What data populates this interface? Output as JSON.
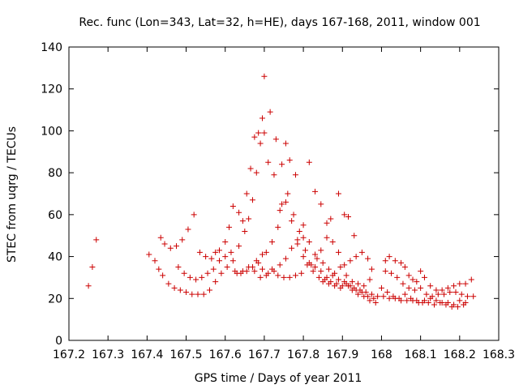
{
  "chart_data": {
    "type": "scatter",
    "title": "Rec. func (Lon=343, Lat=32, h=HE), days 167-168, 2011, window 001",
    "xlabel": "GPS time / Days of year 2011",
    "ylabel": "STEC from uqrg / TECUs",
    "xlim": [
      167.2,
      168.3
    ],
    "ylim": [
      0,
      140
    ],
    "xticks": [
      "167.2",
      "167.3",
      "167.4",
      "167.5",
      "167.6",
      "167.7",
      "167.8",
      "167.9",
      "168",
      "168.1",
      "168.2",
      "168.3"
    ],
    "yticks": [
      "0",
      "20",
      "40",
      "60",
      "80",
      "100",
      "120",
      "140"
    ],
    "grid": false,
    "marker": "plus",
    "color": "#cc0000",
    "points": [
      [
        167.25,
        26
      ],
      [
        167.26,
        35
      ],
      [
        167.27,
        48
      ],
      [
        167.405,
        41
      ],
      [
        167.42,
        38
      ],
      [
        167.435,
        49
      ],
      [
        167.445,
        46
      ],
      [
        167.46,
        44
      ],
      [
        167.475,
        45
      ],
      [
        167.49,
        48
      ],
      [
        167.505,
        53
      ],
      [
        167.52,
        60
      ],
      [
        167.535,
        42
      ],
      [
        167.55,
        40
      ],
      [
        167.565,
        39
      ],
      [
        167.575,
        42
      ],
      [
        167.585,
        43
      ],
      [
        167.6,
        47
      ],
      [
        167.61,
        54
      ],
      [
        167.62,
        64
      ],
      [
        167.635,
        61
      ],
      [
        167.645,
        57
      ],
      [
        167.655,
        70
      ],
      [
        167.665,
        82
      ],
      [
        167.675,
        97
      ],
      [
        167.685,
        99
      ],
      [
        167.695,
        106
      ],
      [
        167.7,
        126
      ],
      [
        167.715,
        109
      ],
      [
        167.73,
        96
      ],
      [
        167.745,
        84
      ],
      [
        167.755,
        94
      ],
      [
        167.765,
        86
      ],
      [
        167.78,
        79
      ],
      [
        167.8,
        55
      ],
      [
        167.815,
        85
      ],
      [
        167.83,
        71
      ],
      [
        167.845,
        65
      ],
      [
        167.86,
        56
      ],
      [
        167.87,
        58
      ],
      [
        167.89,
        70
      ],
      [
        167.905,
        60
      ],
      [
        167.915,
        59
      ],
      [
        167.93,
        50
      ],
      [
        167.43,
        34
      ],
      [
        167.44,
        31
      ],
      [
        167.455,
        27
      ],
      [
        167.47,
        25
      ],
      [
        167.485,
        24
      ],
      [
        167.5,
        23
      ],
      [
        167.515,
        22
      ],
      [
        167.53,
        22
      ],
      [
        167.545,
        22
      ],
      [
        167.56,
        24
      ],
      [
        167.575,
        28
      ],
      [
        167.59,
        32
      ],
      [
        167.605,
        35
      ],
      [
        167.62,
        38
      ],
      [
        167.635,
        45
      ],
      [
        167.65,
        52
      ],
      [
        167.66,
        58
      ],
      [
        167.67,
        67
      ],
      [
        167.68,
        80
      ],
      [
        167.69,
        94
      ],
      [
        167.7,
        99
      ],
      [
        167.71,
        85
      ],
      [
        167.725,
        79
      ],
      [
        167.74,
        62
      ],
      [
        167.755,
        66
      ],
      [
        167.77,
        57
      ],
      [
        167.785,
        46
      ],
      [
        167.8,
        49
      ],
      [
        167.815,
        47
      ],
      [
        167.83,
        41
      ],
      [
        167.845,
        43
      ],
      [
        167.86,
        49
      ],
      [
        167.875,
        47
      ],
      [
        167.89,
        42
      ],
      [
        167.905,
        36
      ],
      [
        167.92,
        38
      ],
      [
        167.935,
        40
      ],
      [
        167.95,
        42
      ],
      [
        167.965,
        39
      ],
      [
        167.975,
        34
      ],
      [
        167.48,
        35
      ],
      [
        167.495,
        32
      ],
      [
        167.51,
        30
      ],
      [
        167.525,
        29
      ],
      [
        167.54,
        30
      ],
      [
        167.555,
        32
      ],
      [
        167.57,
        34
      ],
      [
        167.585,
        38
      ],
      [
        167.6,
        40
      ],
      [
        167.615,
        42
      ],
      [
        167.625,
        33
      ],
      [
        167.64,
        32
      ],
      [
        167.655,
        33
      ],
      [
        167.67,
        35
      ],
      [
        167.685,
        37
      ],
      [
        167.695,
        41
      ],
      [
        167.705,
        42
      ],
      [
        167.72,
        47
      ],
      [
        167.735,
        54
      ],
      [
        167.745,
        65
      ],
      [
        167.76,
        70
      ],
      [
        167.775,
        60
      ],
      [
        167.79,
        52
      ],
      [
        167.805,
        43
      ],
      [
        167.82,
        36
      ],
      [
        167.835,
        39
      ],
      [
        167.85,
        37
      ],
      [
        167.865,
        34
      ],
      [
        167.88,
        32
      ],
      [
        167.895,
        35
      ],
      [
        167.91,
        31
      ],
      [
        167.925,
        28
      ],
      [
        167.94,
        27
      ],
      [
        167.955,
        26
      ],
      [
        167.97,
        29
      ],
      [
        167.63,
        32
      ],
      [
        167.645,
        33
      ],
      [
        167.66,
        35
      ],
      [
        167.675,
        33
      ],
      [
        167.69,
        30
      ],
      [
        167.705,
        31
      ],
      [
        167.72,
        34
      ],
      [
        167.735,
        31
      ],
      [
        167.75,
        30
      ],
      [
        167.765,
        30
      ],
      [
        167.78,
        31
      ],
      [
        167.795,
        32
      ],
      [
        167.81,
        36
      ],
      [
        167.825,
        33
      ],
      [
        167.84,
        30
      ],
      [
        167.855,
        29
      ],
      [
        167.87,
        28
      ],
      [
        167.885,
        27
      ],
      [
        167.9,
        26
      ],
      [
        167.915,
        26
      ],
      [
        167.93,
        25
      ],
      [
        167.945,
        24
      ],
      [
        167.96,
        23
      ],
      [
        167.975,
        22
      ],
      [
        167.99,
        21
      ],
      [
        167.68,
        38
      ],
      [
        167.695,
        34
      ],
      [
        167.71,
        32
      ],
      [
        167.725,
        33
      ],
      [
        167.74,
        36
      ],
      [
        167.755,
        39
      ],
      [
        167.77,
        44
      ],
      [
        167.785,
        48
      ],
      [
        167.8,
        40
      ],
      [
        167.815,
        37
      ],
      [
        167.83,
        35
      ],
      [
        167.845,
        33
      ],
      [
        167.86,
        30
      ],
      [
        167.875,
        31
      ],
      [
        167.89,
        29
      ],
      [
        167.905,
        28
      ],
      [
        167.92,
        26
      ],
      [
        167.935,
        24
      ],
      [
        167.95,
        23
      ],
      [
        167.965,
        21
      ],
      [
        167.98,
        20
      ],
      [
        167.85,
        28
      ],
      [
        167.865,
        27
      ],
      [
        167.88,
        26
      ],
      [
        167.895,
        25
      ],
      [
        167.91,
        27
      ],
      [
        167.925,
        24
      ],
      [
        167.94,
        22
      ],
      [
        167.955,
        21
      ],
      [
        167.97,
        19
      ],
      [
        167.985,
        18
      ],
      [
        168.01,
        38
      ],
      [
        168.02,
        40
      ],
      [
        168.035,
        38
      ],
      [
        168.05,
        37
      ],
      [
        168.06,
        35
      ],
      [
        168.07,
        31
      ],
      [
        168.08,
        29
      ],
      [
        168.09,
        28
      ],
      [
        168.1,
        33
      ],
      [
        168.11,
        30
      ],
      [
        168.125,
        26
      ],
      [
        168.14,
        24
      ],
      [
        168.155,
        24
      ],
      [
        168.17,
        25
      ],
      [
        168.185,
        26
      ],
      [
        168.2,
        27
      ],
      [
        168.215,
        27
      ],
      [
        168.23,
        29
      ],
      [
        168.01,
        33
      ],
      [
        168.025,
        32
      ],
      [
        168.04,
        30
      ],
      [
        168.055,
        27
      ],
      [
        168.07,
        25
      ],
      [
        168.085,
        24
      ],
      [
        168.1,
        25
      ],
      [
        168.115,
        22
      ],
      [
        168.13,
        21
      ],
      [
        168.145,
        22
      ],
      [
        168.16,
        22
      ],
      [
        168.175,
        23
      ],
      [
        168.19,
        23
      ],
      [
        168.205,
        22
      ],
      [
        168.22,
        21
      ],
      [
        168.235,
        21
      ],
      [
        168.005,
        21
      ],
      [
        168.02,
        20
      ],
      [
        168.035,
        20
      ],
      [
        168.05,
        19
      ],
      [
        168.065,
        19
      ],
      [
        168.08,
        19
      ],
      [
        168.095,
        18
      ],
      [
        168.11,
        19
      ],
      [
        168.125,
        20
      ],
      [
        168.14,
        19
      ],
      [
        168.155,
        18
      ],
      [
        168.17,
        18
      ],
      [
        168.185,
        17
      ],
      [
        168.2,
        19
      ],
      [
        168.215,
        18
      ],
      [
        168.0,
        25
      ],
      [
        168.015,
        23
      ],
      [
        168.03,
        21
      ],
      [
        168.045,
        20
      ],
      [
        168.06,
        22
      ],
      [
        168.075,
        20
      ],
      [
        168.09,
        19
      ],
      [
        168.105,
        18
      ],
      [
        168.12,
        18
      ],
      [
        168.135,
        17
      ],
      [
        168.15,
        18
      ],
      [
        168.165,
        17
      ],
      [
        168.18,
        16
      ],
      [
        168.195,
        16
      ],
      [
        168.21,
        17
      ]
    ]
  }
}
